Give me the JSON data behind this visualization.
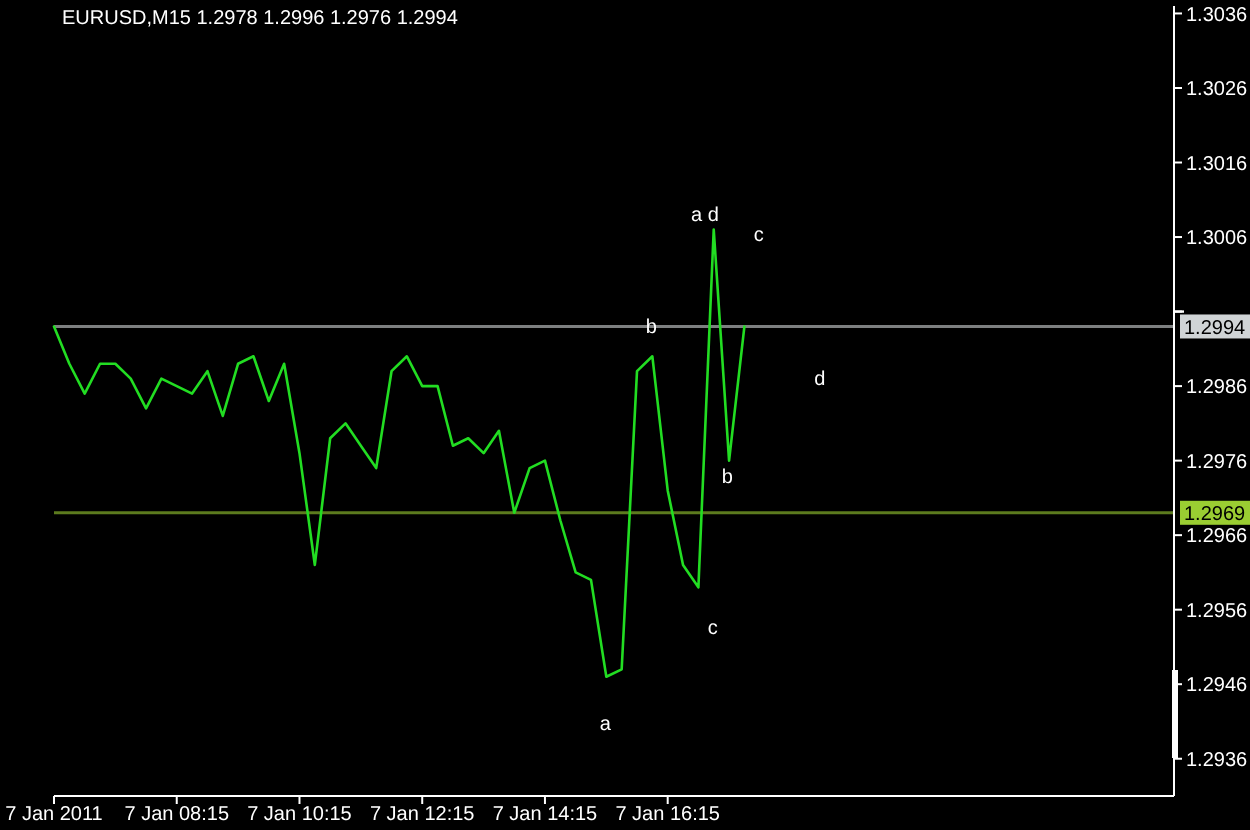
{
  "chart_data": {
    "type": "line",
    "title": "EURUSD,M15 1.2978 1.2996 1.2976 1.2994",
    "categories": [
      "7 Jan 2011",
      null,
      null,
      null,
      null,
      null,
      null,
      null,
      "7 Jan 08:15",
      null,
      null,
      null,
      null,
      null,
      null,
      null,
      "7 Jan 10:15",
      null,
      null,
      null,
      null,
      null,
      null,
      null,
      "7 Jan 12:15",
      null,
      null,
      null,
      null,
      null,
      null,
      null,
      "7 Jan 14:15",
      null,
      null,
      null,
      null,
      null,
      null,
      null,
      "7 Jan 16:15",
      null,
      null,
      null,
      null,
      null,
      null,
      null,
      null,
      null,
      null,
      null,
      null,
      null,
      null,
      null,
      null,
      null,
      null,
      null,
      null,
      null,
      null,
      null,
      null,
      null,
      null,
      null,
      null,
      null,
      null,
      null,
      null,
      null
    ],
    "series": [
      {
        "color": "#22dd22",
        "values": [
          1.2994,
          1.2989,
          1.2985,
          1.2989,
          1.2989,
          1.2987,
          1.2983,
          1.2987,
          1.2986,
          1.2985,
          1.2988,
          1.2982,
          1.2989,
          1.299,
          1.2984,
          1.2989,
          1.2977,
          1.2962,
          1.2979,
          1.2981,
          1.2978,
          1.2975,
          1.2988,
          1.299,
          1.2986,
          1.2986,
          1.2978,
          1.2979,
          1.2977,
          1.298,
          1.2969,
          1.2975,
          1.2976,
          1.2968,
          1.2961,
          1.296,
          1.2947,
          1.2948,
          1.2988,
          1.299,
          1.2972,
          1.2962,
          1.2959,
          1.3007,
          1.2976,
          1.2994,
          null,
          null,
          null,
          null,
          null,
          null,
          null,
          null,
          null,
          null,
          null,
          null,
          null,
          null,
          null,
          null,
          null,
          null,
          null,
          null,
          null,
          null,
          null,
          null,
          null,
          null,
          null,
          null
        ]
      }
    ],
    "ylim": [
      1.2931,
      1.3037
    ],
    "yticks": [
      1.2936,
      1.2946,
      1.2956,
      1.2966,
      1.2976,
      1.2986,
      {
        "value": 1.2996,
        "label": null
      },
      1.3006,
      1.3016,
      1.3026,
      1.3036
    ],
    "ref_lines": [
      {
        "axis": "y",
        "value": 1.2994,
        "label": "1.2994",
        "color": "#d0d4d6"
      },
      {
        "axis": "y",
        "value": 1.2969,
        "label": "1.2969",
        "color": "#9acd32"
      }
    ],
    "annotations": [
      "a d",
      "c",
      "b",
      "d",
      "b",
      "c",
      "a"
    ]
  }
}
